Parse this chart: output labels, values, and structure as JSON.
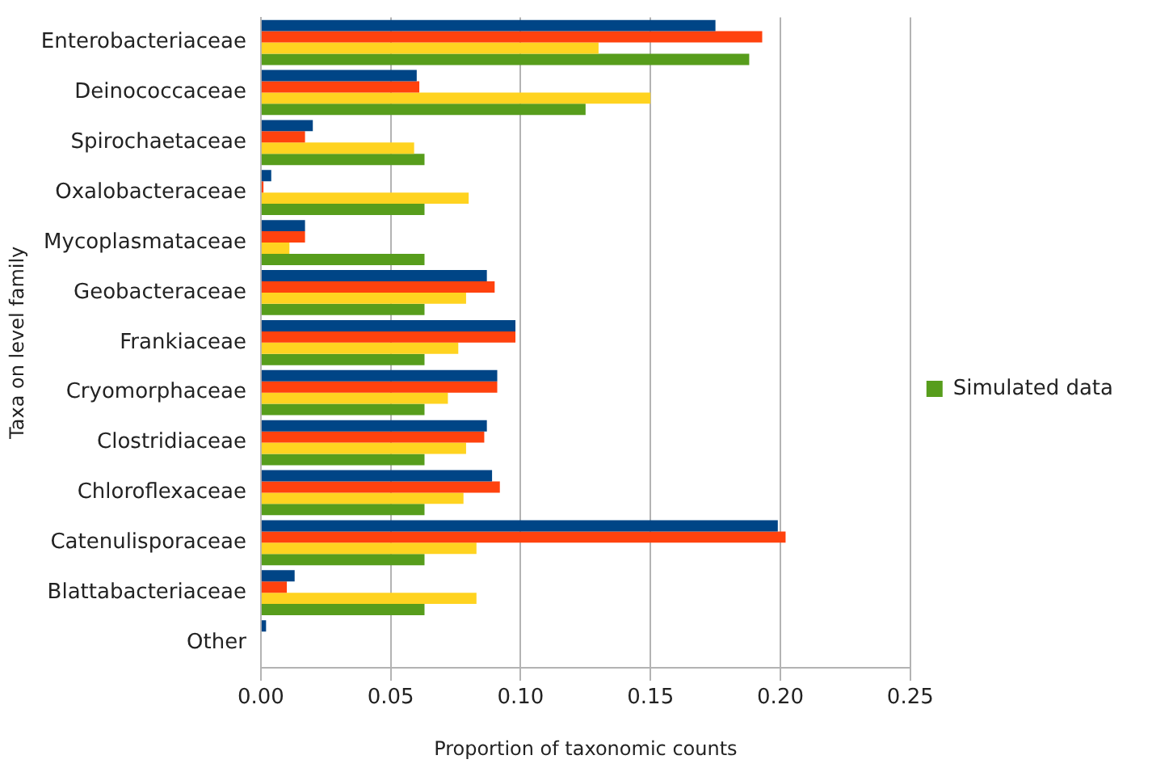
{
  "chart_data": {
    "type": "bar",
    "orientation": "horizontal",
    "xlabel": "Proportion of taxonomic counts",
    "ylabel": "Taxa on level family",
    "categories": [
      "Enterobacteriaceae",
      "Deinococcaceae",
      "Spirochaetaceae",
      "Oxalobacteraceae",
      "Mycoplasmataceae",
      "Geobacteraceae",
      "Frankiaceae",
      "Cryomorphaceae",
      "Clostridiaceae",
      "Chloroflexaceae",
      "Catenulisporaceae",
      "Blattabacteriaceae",
      "Other"
    ],
    "series": [
      {
        "color": "#004586",
        "values": [
          0.175,
          0.06,
          0.02,
          0.004,
          0.017,
          0.087,
          0.098,
          0.091,
          0.087,
          0.089,
          0.199,
          0.013,
          0.002
        ]
      },
      {
        "color": "#ff420e",
        "values": [
          0.193,
          0.061,
          0.017,
          0.001,
          0.017,
          0.09,
          0.098,
          0.091,
          0.086,
          0.092,
          0.202,
          0.01,
          0
        ]
      },
      {
        "color": "#ffd320",
        "values": [
          0.13,
          0.15,
          0.059,
          0.08,
          0.011,
          0.079,
          0.076,
          0.072,
          0.079,
          0.078,
          0.083,
          0.083,
          0
        ]
      },
      {
        "name": "Simulated data",
        "color": "#579d1c",
        "values": [
          0.188,
          0.125,
          0.063,
          0.063,
          0.063,
          0.063,
          0.063,
          0.063,
          0.063,
          0.063,
          0.063,
          0.063,
          0
        ]
      }
    ],
    "xlim": [
      0,
      0.25
    ],
    "xticks": [
      {
        "value": 0,
        "label": "0.00"
      },
      0.05,
      {
        "value": 0.1,
        "label": "0.10"
      },
      0.15,
      {
        "value": 0.2,
        "label": "0.20"
      },
      0.25
    ],
    "grid": "x",
    "legend": "right"
  }
}
